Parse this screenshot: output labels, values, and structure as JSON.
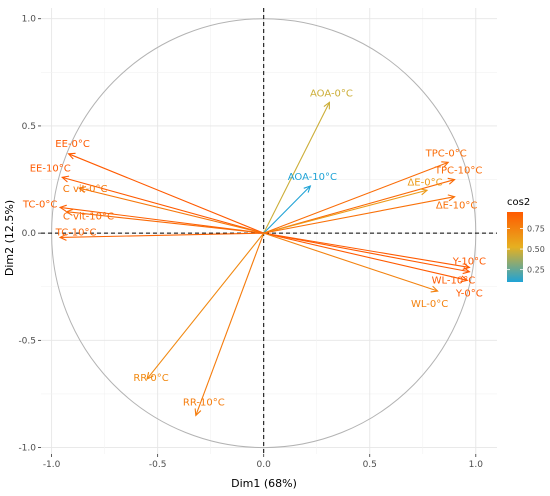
{
  "chart_data": {
    "type": "scatter",
    "subtype": "pca-correlation-circle",
    "title": "",
    "xlabel": "Dim1 (68%)",
    "ylabel": "Dim2 (12.5%)",
    "xlim": [
      -1.05,
      1.1
    ],
    "ylim": [
      -1.03,
      1.05
    ],
    "x_ticks": [
      -1.0,
      -0.5,
      0.0,
      0.5,
      1.0
    ],
    "x_tick_labels": [
      "-1.0",
      "-0.5",
      "0.0",
      "0.5",
      "1.0"
    ],
    "y_ticks": [
      -1.0,
      -0.5,
      0.0,
      0.5,
      1.0
    ],
    "y_tick_labels": [
      "-1.0",
      "-0.5",
      "0.0",
      "0.5",
      "1.0"
    ],
    "grid": true,
    "unit_circle": true,
    "reference_lines": [
      "x=0",
      "y=0"
    ],
    "legend": {
      "title": "cos2",
      "placement": "right",
      "ticks": [
        0.25,
        0.5,
        0.75
      ],
      "tick_labels": [
        "0.25",
        "0.50",
        "0.75"
      ],
      "range": [
        0.1,
        0.95
      ],
      "colors": [
        "#1fa3d6",
        "#e6b020",
        "#ff5a00"
      ]
    },
    "variables": [
      {
        "name": "AOA-0°C",
        "x": 0.31,
        "y": 0.61,
        "cos2": 0.47
      },
      {
        "name": "AOA-10°C",
        "x": 0.22,
        "y": 0.22,
        "cos2": 0.1
      },
      {
        "name": "TPC-0°C",
        "x": 0.87,
        "y": 0.33,
        "cos2": 0.86
      },
      {
        "name": "TPC-10°C",
        "x": 0.9,
        "y": 0.25,
        "cos2": 0.87
      },
      {
        "name": "ΔE-0°C",
        "x": 0.77,
        "y": 0.2,
        "cos2": 0.63
      },
      {
        "name": "ΔE-10°C",
        "x": 0.9,
        "y": 0.17,
        "cos2": 0.84
      },
      {
        "name": "Y-10°C",
        "x": 0.97,
        "y": -0.16,
        "cos2": 0.96
      },
      {
        "name": "Y-0°C",
        "x": 0.96,
        "y": -0.22,
        "cos2": 0.96
      },
      {
        "name": "WL-10°C",
        "x": 0.97,
        "y": -0.18,
        "cos2": 0.96
      },
      {
        "name": "WL-0°C",
        "x": 0.82,
        "y": -0.27,
        "cos2": 0.75
      },
      {
        "name": "EE-0°C",
        "x": -0.92,
        "y": 0.37,
        "cos2": 0.95
      },
      {
        "name": "EE-10°C",
        "x": -0.95,
        "y": 0.26,
        "cos2": 0.95
      },
      {
        "name": "C vit-0°C",
        "x": -0.87,
        "y": 0.21,
        "cos2": 0.8
      },
      {
        "name": "TC-0°C",
        "x": -0.96,
        "y": 0.12,
        "cos2": 0.92
      },
      {
        "name": "C vit-10°C",
        "x": -0.93,
        "y": 0.1,
        "cos2": 0.87
      },
      {
        "name": "TC-10°C",
        "x": -0.96,
        "y": -0.02,
        "cos2": 0.9
      },
      {
        "name": "RR-0°C",
        "x": -0.55,
        "y": -0.68,
        "cos2": 0.72
      },
      {
        "name": "RR-10°C",
        "x": -0.32,
        "y": -0.85,
        "cos2": 0.78
      }
    ]
  }
}
